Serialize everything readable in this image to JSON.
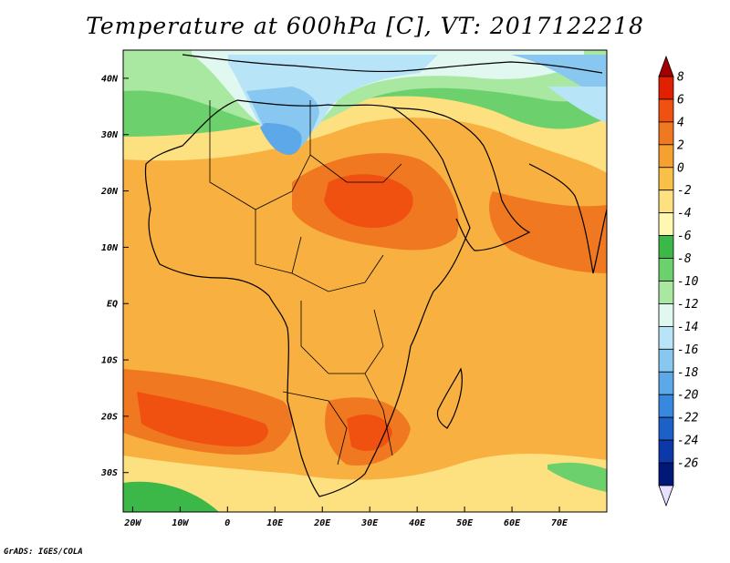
{
  "title": "Temperature at 600hPa [C], VT: 2017122218",
  "footer": "GrADS: IGES/COLA",
  "map": {
    "region": "Africa and Arabian Peninsula",
    "lon_range": [
      -22,
      80
    ],
    "lat_range": [
      -37,
      45
    ],
    "lat_ticks": [
      "40N",
      "30N",
      "20N",
      "10N",
      "EQ",
      "10S",
      "20S",
      "30S"
    ],
    "lon_ticks": [
      "20W",
      "10W",
      "0",
      "10E",
      "20E",
      "30E",
      "40E",
      "50E",
      "60E",
      "70E"
    ]
  },
  "colorbar": {
    "labels": [
      "8",
      "6",
      "4",
      "2",
      "0",
      "-2",
      "-4",
      "-6",
      "-8",
      "-10",
      "-12",
      "-14",
      "-16",
      "-18",
      "-20",
      "-22",
      "-24",
      "-26"
    ],
    "colors": [
      "#a50000",
      "#e02000",
      "#f05010",
      "#f07820",
      "#f5a030",
      "#f8c048",
      "#fde080",
      "#fff8b0",
      "#3cb848",
      "#6cd06c",
      "#a8e8a0",
      "#e0f8f0",
      "#b8e4f8",
      "#88c8f0",
      "#5ca8e8",
      "#3888e0",
      "#1c60c8",
      "#0c38a8",
      "#001878",
      "#e8e0ff"
    ]
  }
}
